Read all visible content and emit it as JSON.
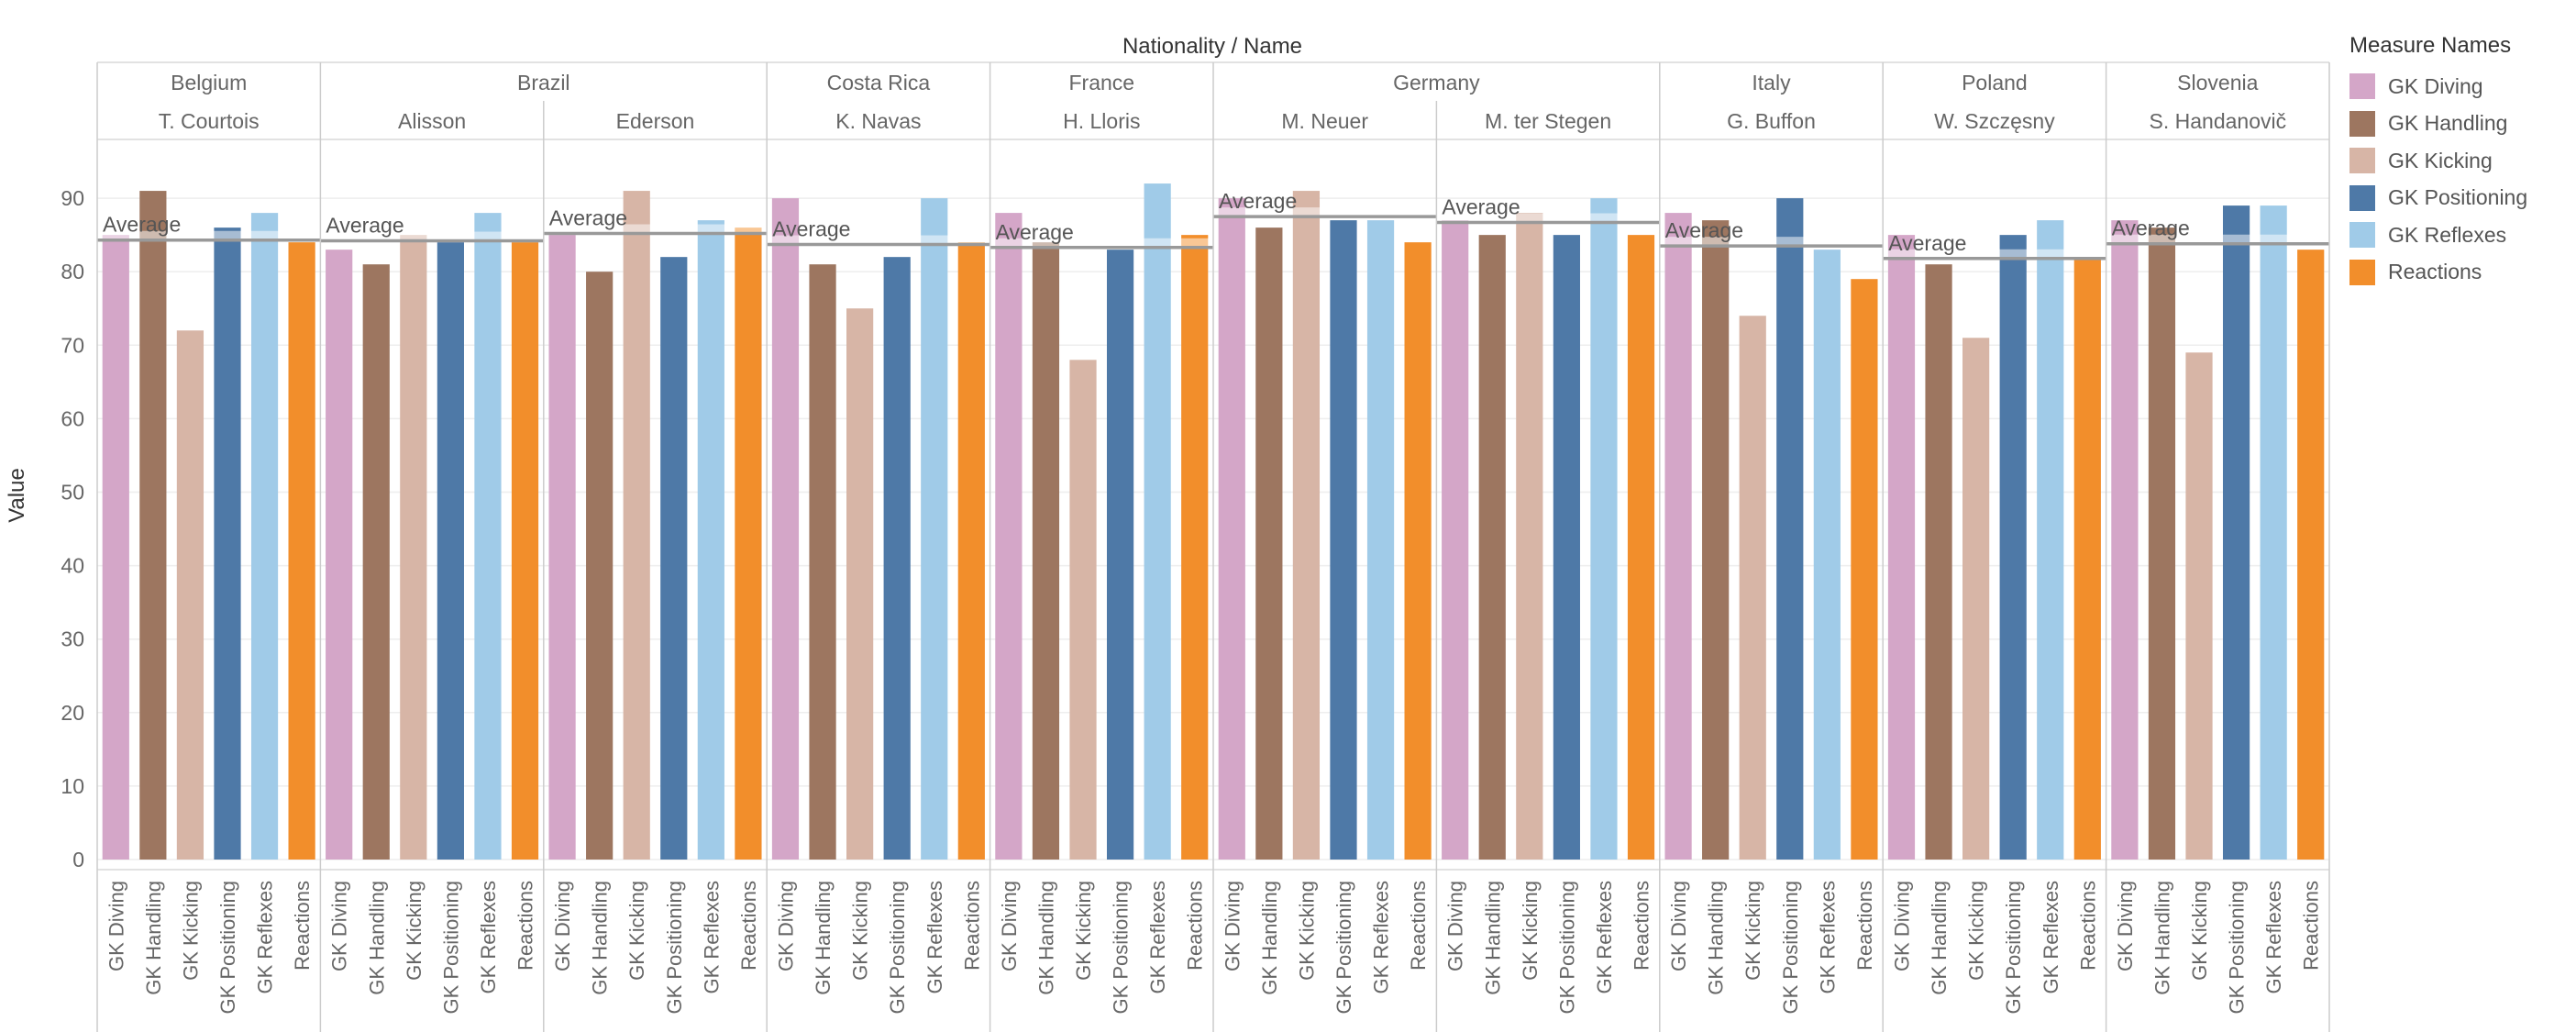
{
  "chart_data": {
    "type": "bar",
    "title": "",
    "header_title": "Nationality / Name",
    "ylabel": "Value",
    "xlabel": "",
    "ylim": [
      0,
      98
    ],
    "y_ticks": [
      0,
      10,
      20,
      30,
      40,
      50,
      60,
      70,
      80,
      90
    ],
    "grid": true,
    "legend_title": "Measure Names",
    "legend_position": "right",
    "reference_line_label": "Average",
    "measures": [
      {
        "name": "GK Diving",
        "color": "#d4a6c8"
      },
      {
        "name": "GK Handling",
        "color": "#9d7660"
      },
      {
        "name": "GK Kicking",
        "color": "#d7b5a6"
      },
      {
        "name": "GK Positioning",
        "color": "#4e79a7"
      },
      {
        "name": "GK Reflexes",
        "color": "#a0cbe8"
      },
      {
        "name": "Reactions",
        "color": "#f28e2b"
      }
    ],
    "groups": [
      {
        "nationality": "Belgium",
        "players": [
          {
            "name": "T. Courtois",
            "values": [
              85,
              91,
              72,
              86,
              88,
              84
            ],
            "average": 84.3
          }
        ]
      },
      {
        "nationality": "Brazil",
        "players": [
          {
            "name": "Alisson",
            "values": [
              83,
              81,
              85,
              84,
              88,
              84
            ],
            "average": 84.2
          },
          {
            "name": "Ederson",
            "values": [
              85,
              80,
              91,
              82,
              87,
              86
            ],
            "average": 85.2
          }
        ]
      },
      {
        "nationality": "Costa Rica",
        "players": [
          {
            "name": "K. Navas",
            "values": [
              90,
              81,
              75,
              82,
              90,
              84
            ],
            "average": 83.7
          }
        ]
      },
      {
        "nationality": "France",
        "players": [
          {
            "name": "H. Lloris",
            "values": [
              88,
              84,
              68,
              83,
              92,
              85
            ],
            "average": 83.3
          }
        ]
      },
      {
        "nationality": "Germany",
        "players": [
          {
            "name": "M. Neuer",
            "values": [
              90,
              86,
              91,
              87,
              87,
              84
            ],
            "average": 87.5
          },
          {
            "name": "M. ter Stegen",
            "values": [
              87,
              85,
              88,
              85,
              90,
              85
            ],
            "average": 86.7
          }
        ]
      },
      {
        "nationality": "Italy",
        "players": [
          {
            "name": "G. Buffon",
            "values": [
              88,
              87,
              74,
              90,
              83,
              79
            ],
            "average": 83.5
          }
        ]
      },
      {
        "nationality": "Poland",
        "players": [
          {
            "name": "W. Szczęsny",
            "values": [
              85,
              81,
              71,
              85,
              87,
              82
            ],
            "average": 81.8
          }
        ]
      },
      {
        "nationality": "Slovenia",
        "players": [
          {
            "name": "S. Handanovič",
            "values": [
              87,
              86,
              69,
              89,
              89,
              83
            ],
            "average": 83.8
          }
        ]
      }
    ]
  }
}
